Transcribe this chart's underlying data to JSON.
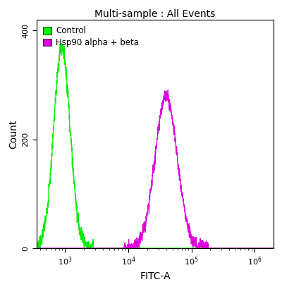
{
  "title": "Multi-sample : All Events",
  "xlabel": "FITC-A",
  "ylabel": "Count",
  "xlim_log": [
    2.55,
    6.3
  ],
  "ylim": [
    0,
    420
  ],
  "yticks": [
    0,
    200,
    400
  ],
  "ytick_labels": [
    "0",
    "200",
    "400"
  ],
  "control_color": "#00ee00",
  "sample_color": "#dd00dd",
  "control_peak_log": 2.95,
  "control_peak_height": 370,
  "control_sigma_log": 0.13,
  "sample_peak_log": 4.6,
  "sample_peak_height": 280,
  "sample_sigma_log": 0.175,
  "legend_labels": [
    "Control",
    "Hsp90 alpha + beta"
  ],
  "background_color": "#ffffff",
  "legend_patch_colors": [
    "#00ee00",
    "#dd00dd"
  ],
  "figsize": [
    4.0,
    4.0
  ],
  "dpi": 100
}
